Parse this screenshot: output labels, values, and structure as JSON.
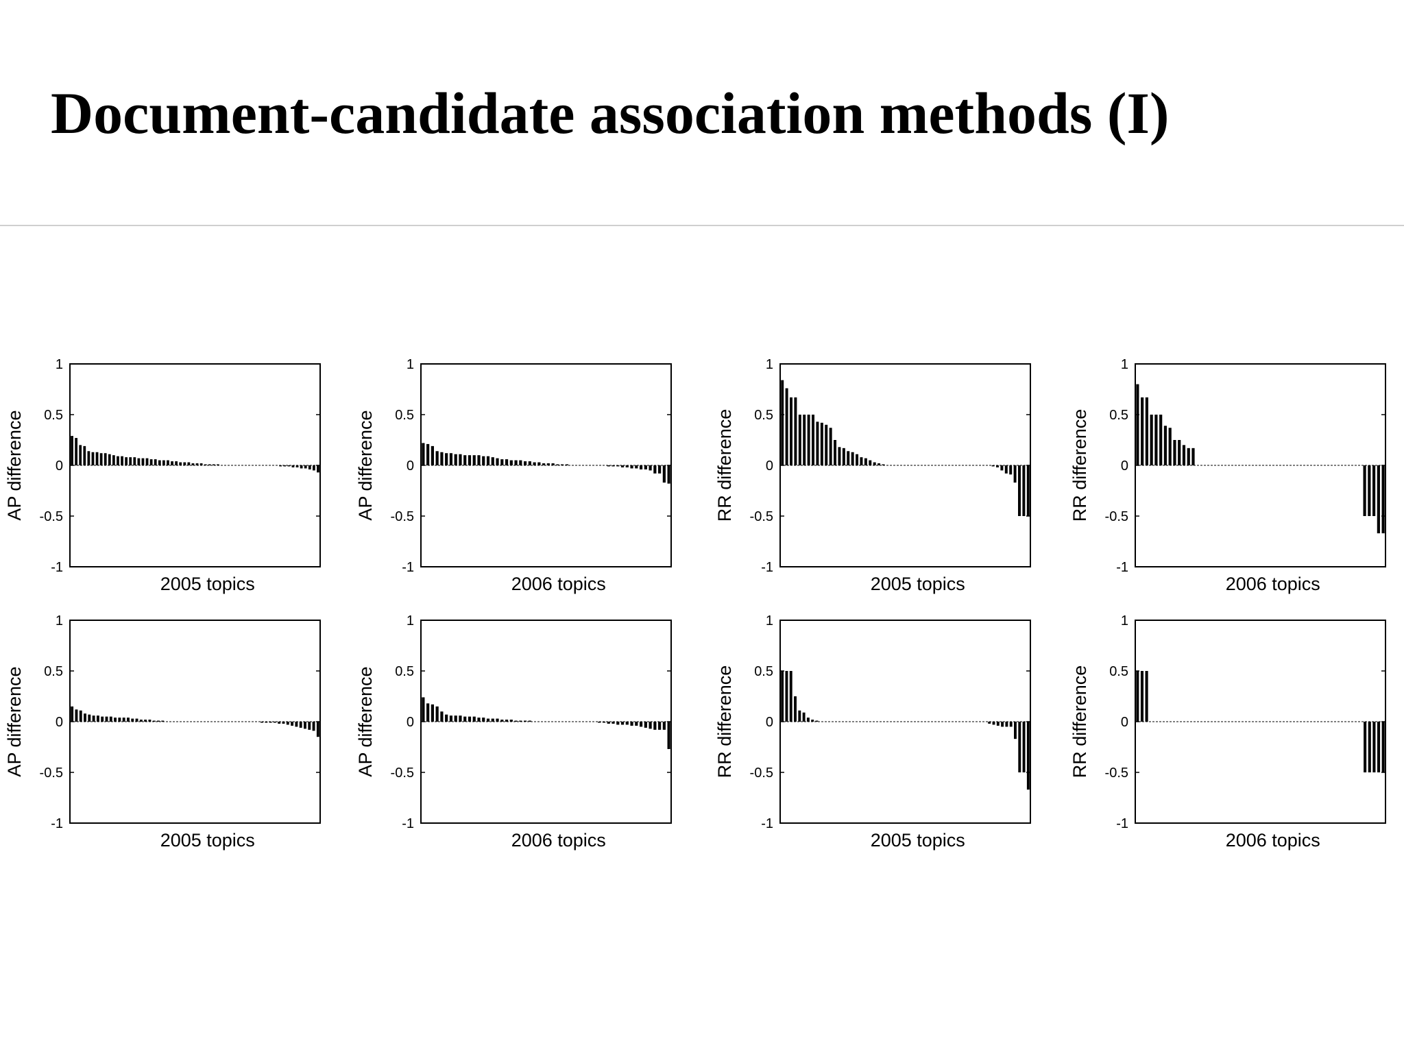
{
  "slide": {
    "title": "Document-candidate association methods (I)"
  },
  "style": {
    "bar_color": "#000000",
    "zero_line_color": "#000000",
    "axes_color": "#000000",
    "rule_color": "#cfcfcf"
  },
  "chart_data": [
    {
      "type": "bar",
      "xlabel": "2005 topics",
      "ylabel": "AP difference",
      "ylim": [
        -1,
        1
      ],
      "yticks": [
        "1",
        "0.5",
        "0",
        "-0.5",
        "-1"
      ],
      "values": [
        0.29,
        0.27,
        0.2,
        0.19,
        0.14,
        0.13,
        0.13,
        0.12,
        0.12,
        0.11,
        0.1,
        0.09,
        0.09,
        0.08,
        0.08,
        0.08,
        0.07,
        0.07,
        0.07,
        0.06,
        0.06,
        0.05,
        0.05,
        0.05,
        0.04,
        0.04,
        0.03,
        0.03,
        0.03,
        0.02,
        0.02,
        0.02,
        0.01,
        0.01,
        0.01,
        0.01,
        0.0,
        0.0,
        0.0,
        0.0,
        0.0,
        0.0,
        0.0,
        0.0,
        0.0,
        0.0,
        0.0,
        0.0,
        0.0,
        0.0,
        -0.01,
        -0.01,
        -0.01,
        -0.02,
        -0.02,
        -0.03,
        -0.03,
        -0.04,
        -0.05,
        -0.07
      ]
    },
    {
      "type": "bar",
      "xlabel": "2006 topics",
      "ylabel": "AP difference",
      "ylim": [
        -1,
        1
      ],
      "yticks": [
        "1",
        "0.5",
        "0",
        "-0.5",
        "-1"
      ],
      "values": [
        0.22,
        0.21,
        0.19,
        0.14,
        0.13,
        0.12,
        0.12,
        0.11,
        0.11,
        0.1,
        0.1,
        0.1,
        0.1,
        0.09,
        0.09,
        0.08,
        0.07,
        0.06,
        0.06,
        0.05,
        0.05,
        0.05,
        0.04,
        0.04,
        0.03,
        0.03,
        0.02,
        0.02,
        0.02,
        0.01,
        0.01,
        0.01,
        0.0,
        0.0,
        0.0,
        0.0,
        0.0,
        0.0,
        0.0,
        0.0,
        -0.01,
        -0.01,
        -0.01,
        -0.02,
        -0.02,
        -0.03,
        -0.03,
        -0.04,
        -0.04,
        -0.05,
        -0.08,
        -0.08,
        -0.17,
        -0.18
      ]
    },
    {
      "type": "bar",
      "xlabel": "2005 topics",
      "ylabel": "RR difference",
      "ylim": [
        -1,
        1
      ],
      "yticks": [
        "1",
        "0.5",
        "0",
        "-0.5",
        "-1"
      ],
      "values": [
        0.84,
        0.76,
        0.67,
        0.67,
        0.5,
        0.5,
        0.5,
        0.5,
        0.43,
        0.42,
        0.4,
        0.37,
        0.25,
        0.18,
        0.17,
        0.14,
        0.13,
        0.11,
        0.08,
        0.07,
        0.05,
        0.03,
        0.02,
        0.01,
        0.0,
        0.0,
        0.0,
        0.0,
        0.0,
        0.0,
        0.0,
        0.0,
        0.0,
        0.0,
        0.0,
        0.0,
        0.0,
        0.0,
        0.0,
        0.0,
        0.0,
        0.0,
        0.0,
        0.0,
        0.0,
        0.0,
        0.0,
        0.0,
        -0.01,
        -0.02,
        -0.05,
        -0.08,
        -0.09,
        -0.17,
        -0.5,
        -0.5,
        -0.5
      ]
    },
    {
      "type": "bar",
      "xlabel": "2006 topics",
      "ylabel": "RR difference",
      "ylim": [
        -1,
        1
      ],
      "yticks": [
        "1",
        "0.5",
        "0",
        "-0.5",
        "-1"
      ],
      "values": [
        0.8,
        0.67,
        0.67,
        0.5,
        0.5,
        0.5,
        0.39,
        0.37,
        0.25,
        0.25,
        0.2,
        0.17,
        0.17,
        0.0,
        0.0,
        0.0,
        0.0,
        0.0,
        0.0,
        0.0,
        0.0,
        0.0,
        0.0,
        0.0,
        0.0,
        0.0,
        0.0,
        0.0,
        0.0,
        0.0,
        0.0,
        0.0,
        0.0,
        0.0,
        0.0,
        0.0,
        0.0,
        0.0,
        0.0,
        0.0,
        0.0,
        0.0,
        0.0,
        0.0,
        0.0,
        0.0,
        0.0,
        0.0,
        0.0,
        -0.5,
        -0.5,
        -0.5,
        -0.67,
        -0.67
      ]
    },
    {
      "type": "bar",
      "xlabel": "2005 topics",
      "ylabel": "AP difference",
      "ylim": [
        -1,
        1
      ],
      "yticks": [
        "1",
        "0.5",
        "0",
        "-0.5",
        "-1"
      ],
      "values": [
        0.15,
        0.12,
        0.11,
        0.08,
        0.07,
        0.06,
        0.06,
        0.05,
        0.05,
        0.05,
        0.04,
        0.04,
        0.04,
        0.04,
        0.03,
        0.03,
        0.02,
        0.02,
        0.02,
        0.01,
        0.01,
        0.01,
        0.0,
        0.0,
        0.0,
        0.0,
        0.0,
        0.0,
        0.0,
        0.0,
        0.0,
        0.0,
        0.0,
        0.0,
        0.0,
        0.0,
        0.0,
        0.0,
        0.0,
        0.0,
        0.0,
        0.0,
        0.0,
        0.0,
        -0.01,
        -0.01,
        -0.01,
        -0.01,
        -0.02,
        -0.02,
        -0.03,
        -0.04,
        -0.05,
        -0.06,
        -0.07,
        -0.08,
        -0.09,
        -0.15
      ]
    },
    {
      "type": "bar",
      "xlabel": "2006 topics",
      "ylabel": "AP difference",
      "ylim": [
        -1,
        1
      ],
      "yticks": [
        "1",
        "0.5",
        "0",
        "-0.5",
        "-1"
      ],
      "values": [
        0.24,
        0.18,
        0.17,
        0.15,
        0.1,
        0.07,
        0.06,
        0.06,
        0.06,
        0.05,
        0.05,
        0.05,
        0.04,
        0.04,
        0.03,
        0.03,
        0.03,
        0.02,
        0.02,
        0.02,
        0.01,
        0.01,
        0.01,
        0.01,
        0.0,
        0.0,
        0.0,
        0.0,
        0.0,
        0.0,
        0.0,
        0.0,
        0.0,
        0.0,
        0.0,
        0.0,
        0.0,
        0.0,
        -0.01,
        -0.01,
        -0.02,
        -0.02,
        -0.03,
        -0.03,
        -0.03,
        -0.04,
        -0.04,
        -0.05,
        -0.06,
        -0.07,
        -0.08,
        -0.08,
        -0.08,
        -0.27
      ]
    },
    {
      "type": "bar",
      "xlabel": "2005 topics",
      "ylabel": "RR difference",
      "ylim": [
        -1,
        1
      ],
      "yticks": [
        "1",
        "0.5",
        "0",
        "-0.5",
        "-1"
      ],
      "values": [
        0.5,
        0.5,
        0.5,
        0.25,
        0.11,
        0.09,
        0.04,
        0.02,
        0.01,
        0.0,
        0.0,
        0.0,
        0.0,
        0.0,
        0.0,
        0.0,
        0.0,
        0.0,
        0.0,
        0.0,
        0.0,
        0.0,
        0.0,
        0.0,
        0.0,
        0.0,
        0.0,
        0.0,
        0.0,
        0.0,
        0.0,
        0.0,
        0.0,
        0.0,
        0.0,
        0.0,
        0.0,
        0.0,
        0.0,
        0.0,
        0.0,
        0.0,
        0.0,
        0.0,
        0.0,
        0.0,
        0.0,
        0.0,
        -0.02,
        -0.03,
        -0.04,
        -0.05,
        -0.05,
        -0.05,
        -0.17,
        -0.5,
        -0.5,
        -0.67
      ]
    },
    {
      "type": "bar",
      "xlabel": "2006 topics",
      "ylabel": "RR difference",
      "ylim": [
        -1,
        1
      ],
      "yticks": [
        "1",
        "0.5",
        "0",
        "-0.5",
        "-1"
      ],
      "values": [
        0.5,
        0.5,
        0.5,
        0.0,
        0.0,
        0.0,
        0.0,
        0.0,
        0.0,
        0.0,
        0.0,
        0.0,
        0.0,
        0.0,
        0.0,
        0.0,
        0.0,
        0.0,
        0.0,
        0.0,
        0.0,
        0.0,
        0.0,
        0.0,
        0.0,
        0.0,
        0.0,
        0.0,
        0.0,
        0.0,
        0.0,
        0.0,
        0.0,
        0.0,
        0.0,
        0.0,
        0.0,
        0.0,
        0.0,
        0.0,
        0.0,
        0.0,
        0.0,
        0.0,
        0.0,
        0.0,
        0.0,
        0.0,
        0.0,
        0.0,
        -0.5,
        -0.5,
        -0.5,
        -0.5,
        -0.5
      ]
    }
  ]
}
